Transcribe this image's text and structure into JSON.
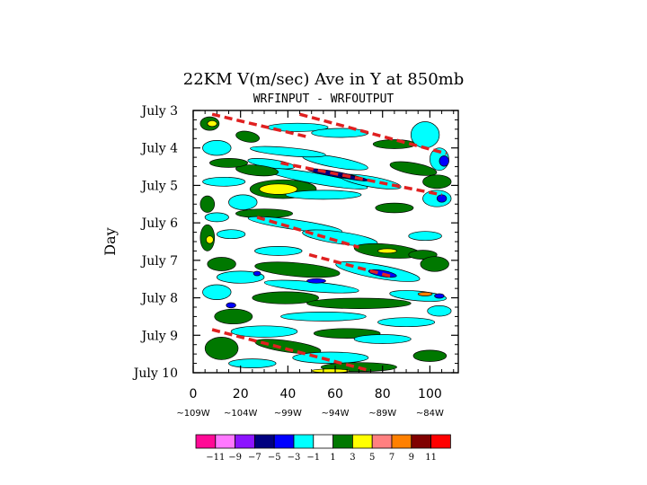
{
  "chart_data": {
    "type": "heatmap",
    "title": "22KM V(m/sec) Ave in Y at 850mb",
    "subtitle": "WRFINPUT - WRFOUTPUT",
    "ylabel": "Day",
    "xlabel": "",
    "xlim": [
      0,
      112
    ],
    "x_ticks": [
      0,
      20,
      40,
      60,
      80,
      100
    ],
    "x_tick_labels": [
      "0",
      "20",
      "40",
      "60",
      "80",
      "100"
    ],
    "x_secondary_labels": [
      "~109W",
      "~104W",
      "~99W",
      "~94W",
      "~89W",
      "~84W"
    ],
    "ylim": [
      3,
      10
    ],
    "y_ticks": [
      3,
      4,
      5,
      6,
      7,
      8,
      9,
      10
    ],
    "y_tick_labels": [
      "July 3",
      "July 4",
      "July 5",
      "July 6",
      "July 7",
      "July 8",
      "July 9",
      "July 10"
    ],
    "y_inverted": true,
    "colorbar": {
      "colors": [
        "#ff0a96",
        "#ff78ff",
        "#8c14ff",
        "#000080",
        "#0000ff",
        "#00ffff",
        "#ffffff",
        "#007800",
        "#ffff00",
        "#ff8080",
        "#ff8000",
        "#800000",
        "#ff0000"
      ],
      "labels": [
        "−11",
        "−9",
        "−7",
        "−5",
        "−3",
        "−1",
        "1",
        "3",
        "5",
        "7",
        "9",
        "11"
      ]
    },
    "features": [
      {
        "x": 23,
        "y": 3.7,
        "rx": 5,
        "ry": 0.14,
        "rot": 10,
        "value": 2
      },
      {
        "x": 33,
        "y": 4.42,
        "rx": 10,
        "ry": 0.11,
        "rot": 8,
        "value": -2
      },
      {
        "x": 52,
        "y": 4.82,
        "rx": 22,
        "ry": 0.14,
        "rot": 10,
        "value": -2
      },
      {
        "x": 60,
        "y": 4.38,
        "rx": 14,
        "ry": 0.14,
        "rot": 10,
        "value": -2
      },
      {
        "x": 75,
        "y": 4.9,
        "rx": 13,
        "ry": 0.14,
        "rot": 10,
        "value": -2
      },
      {
        "x": 27,
        "y": 4.6,
        "rx": 9,
        "ry": 0.14,
        "rot": 5,
        "value": 2
      },
      {
        "x": 40,
        "y": 4.1,
        "rx": 16,
        "ry": 0.11,
        "rot": 5,
        "value": -2
      },
      {
        "x": 44,
        "y": 3.45,
        "rx": 13,
        "ry": 0.11,
        "rot": 0,
        "value": -2
      },
      {
        "x": 62,
        "y": 3.6,
        "rx": 12,
        "ry": 0.12,
        "rot": 0,
        "value": -2
      },
      {
        "x": 85,
        "y": 3.9,
        "rx": 9,
        "ry": 0.12,
        "rot": 0,
        "value": 2
      },
      {
        "x": 98,
        "y": 3.65,
        "rx": 6,
        "ry": 0.35,
        "rot": 0,
        "value": -2
      },
      {
        "x": 7,
        "y": 3.35,
        "rx": 4,
        "ry": 0.18,
        "rot": 0,
        "value": 2
      },
      {
        "x": 93,
        "y": 4.55,
        "rx": 10,
        "ry": 0.15,
        "rot": 10,
        "value": 2
      },
      {
        "x": 104,
        "y": 4.3,
        "rx": 4,
        "ry": 0.3,
        "rot": 0,
        "value": -2
      },
      {
        "x": 103,
        "y": 4.9,
        "rx": 6,
        "ry": 0.18,
        "rot": 0,
        "value": 2
      },
      {
        "x": 10,
        "y": 4.0,
        "rx": 6,
        "ry": 0.2,
        "rot": 0,
        "value": -2
      },
      {
        "x": 15,
        "y": 4.4,
        "rx": 8,
        "ry": 0.12,
        "rot": 0,
        "value": 2
      },
      {
        "x": 13,
        "y": 4.9,
        "rx": 9,
        "ry": 0.12,
        "rot": 0,
        "value": -2
      },
      {
        "x": 38,
        "y": 5.1,
        "rx": 14,
        "ry": 0.25,
        "rot": 0,
        "value": 2
      },
      {
        "x": 21,
        "y": 5.45,
        "rx": 6,
        "ry": 0.2,
        "rot": 0,
        "value": -2
      },
      {
        "x": 55,
        "y": 5.25,
        "rx": 16,
        "ry": 0.12,
        "rot": 0,
        "value": -2
      },
      {
        "x": 85,
        "y": 5.6,
        "rx": 8,
        "ry": 0.13,
        "rot": 0,
        "value": 2
      },
      {
        "x": 103,
        "y": 5.35,
        "rx": 6,
        "ry": 0.22,
        "rot": 0,
        "value": -2
      },
      {
        "x": 6,
        "y": 5.5,
        "rx": 3,
        "ry": 0.22,
        "rot": 0,
        "value": 2
      },
      {
        "x": 30,
        "y": 5.75,
        "rx": 12,
        "ry": 0.12,
        "rot": 0,
        "value": 2
      },
      {
        "x": 10,
        "y": 5.85,
        "rx": 5,
        "ry": 0.12,
        "rot": 0,
        "value": -2
      },
      {
        "x": 43,
        "y": 6.05,
        "rx": 20,
        "ry": 0.13,
        "rot": 8,
        "value": -2
      },
      {
        "x": 62,
        "y": 6.4,
        "rx": 16,
        "ry": 0.16,
        "rot": 8,
        "value": -2
      },
      {
        "x": 6,
        "y": 6.4,
        "rx": 3,
        "ry": 0.35,
        "rot": 0,
        "value": 2
      },
      {
        "x": 16,
        "y": 6.3,
        "rx": 6,
        "ry": 0.12,
        "rot": 0,
        "value": -2
      },
      {
        "x": 82,
        "y": 6.75,
        "rx": 14,
        "ry": 0.18,
        "rot": 5,
        "value": 2
      },
      {
        "x": 98,
        "y": 6.35,
        "rx": 7,
        "ry": 0.12,
        "rot": 0,
        "value": -2
      },
      {
        "x": 97,
        "y": 6.85,
        "rx": 6,
        "ry": 0.12,
        "rot": 0,
        "value": 2
      },
      {
        "x": 36,
        "y": 6.75,
        "rx": 10,
        "ry": 0.12,
        "rot": 0,
        "value": -2
      },
      {
        "x": 78,
        "y": 7.3,
        "rx": 18,
        "ry": 0.18,
        "rot": 10,
        "value": -2
      },
      {
        "x": 102,
        "y": 7.1,
        "rx": 6,
        "ry": 0.2,
        "rot": 0,
        "value": 2
      },
      {
        "x": 12,
        "y": 7.1,
        "rx": 6,
        "ry": 0.18,
        "rot": 0,
        "value": 2
      },
      {
        "x": 44,
        "y": 7.25,
        "rx": 18,
        "ry": 0.18,
        "rot": 5,
        "value": 2
      },
      {
        "x": 20,
        "y": 7.45,
        "rx": 10,
        "ry": 0.16,
        "rot": 0,
        "value": -2
      },
      {
        "x": 50,
        "y": 7.7,
        "rx": 20,
        "ry": 0.13,
        "rot": 5,
        "value": -2
      },
      {
        "x": 95,
        "y": 7.95,
        "rx": 12,
        "ry": 0.13,
        "rot": 5,
        "value": -2
      },
      {
        "x": 10,
        "y": 7.85,
        "rx": 6,
        "ry": 0.2,
        "rot": 0,
        "value": -2
      },
      {
        "x": 39,
        "y": 8.0,
        "rx": 14,
        "ry": 0.16,
        "rot": 0,
        "value": 2
      },
      {
        "x": 70,
        "y": 8.15,
        "rx": 22,
        "ry": 0.14,
        "rot": 0,
        "value": 2
      },
      {
        "x": 104,
        "y": 8.35,
        "rx": 5,
        "ry": 0.14,
        "rot": 0,
        "value": -2
      },
      {
        "x": 17,
        "y": 8.5,
        "rx": 8,
        "ry": 0.2,
        "rot": 0,
        "value": 2
      },
      {
        "x": 55,
        "y": 8.5,
        "rx": 18,
        "ry": 0.12,
        "rot": 0,
        "value": -2
      },
      {
        "x": 90,
        "y": 8.65,
        "rx": 12,
        "ry": 0.12,
        "rot": 0,
        "value": -2
      },
      {
        "x": 30,
        "y": 8.9,
        "rx": 14,
        "ry": 0.15,
        "rot": 0,
        "value": -2
      },
      {
        "x": 65,
        "y": 8.95,
        "rx": 14,
        "ry": 0.13,
        "rot": 0,
        "value": 2
      },
      {
        "x": 80,
        "y": 9.1,
        "rx": 12,
        "ry": 0.12,
        "rot": 0,
        "value": -2
      },
      {
        "x": 12,
        "y": 9.35,
        "rx": 7,
        "ry": 0.3,
        "rot": 0,
        "value": 2
      },
      {
        "x": 40,
        "y": 9.3,
        "rx": 14,
        "ry": 0.15,
        "rot": 8,
        "value": 2
      },
      {
        "x": 58,
        "y": 9.6,
        "rx": 16,
        "ry": 0.15,
        "rot": 0,
        "value": -2
      },
      {
        "x": 25,
        "y": 9.75,
        "rx": 10,
        "ry": 0.12,
        "rot": 0,
        "value": -2
      },
      {
        "x": 70,
        "y": 9.85,
        "rx": 16,
        "ry": 0.12,
        "rot": 0,
        "value": 2
      },
      {
        "x": 100,
        "y": 9.55,
        "rx": 7,
        "ry": 0.15,
        "rot": 0,
        "value": 2
      }
    ],
    "strong_features": [
      {
        "x": 60,
        "y": 4.7,
        "rx": 12,
        "ry": 0.07,
        "rot": 10,
        "value": -6
      },
      {
        "x": 68,
        "y": 4.8,
        "rx": 6,
        "ry": 0.05,
        "rot": 10,
        "value": -6
      },
      {
        "x": 106,
        "y": 4.35,
        "rx": 2,
        "ry": 0.14,
        "rot": 0,
        "value": -4
      },
      {
        "x": 105,
        "y": 5.35,
        "rx": 2,
        "ry": 0.1,
        "rot": 0,
        "value": -4
      },
      {
        "x": 80,
        "y": 7.35,
        "rx": 6,
        "ry": 0.08,
        "rot": 10,
        "value": -4
      },
      {
        "x": 104,
        "y": 7.95,
        "rx": 2,
        "ry": 0.06,
        "rot": 0,
        "value": -4
      },
      {
        "x": 16,
        "y": 8.2,
        "rx": 2,
        "ry": 0.07,
        "rot": 0,
        "value": -4
      },
      {
        "x": 52,
        "y": 7.55,
        "rx": 4,
        "ry": 0.06,
        "rot": 0,
        "value": -4
      },
      {
        "x": 27,
        "y": 7.35,
        "rx": 1.5,
        "ry": 0.06,
        "rot": 0,
        "value": -4
      },
      {
        "x": 36,
        "y": 5.1,
        "rx": 8,
        "ry": 0.14,
        "rot": 0,
        "value": 4
      },
      {
        "x": 8,
        "y": 3.35,
        "rx": 2,
        "ry": 0.08,
        "rot": 0,
        "value": 4
      },
      {
        "x": 7,
        "y": 6.45,
        "rx": 1.5,
        "ry": 0.1,
        "rot": 0,
        "value": 4
      },
      {
        "x": 82,
        "y": 6.75,
        "rx": 4,
        "ry": 0.06,
        "rot": 0,
        "value": 4
      },
      {
        "x": 98,
        "y": 7.9,
        "rx": 3,
        "ry": 0.05,
        "rot": 0,
        "value": 7
      },
      {
        "x": 58,
        "y": 9.95,
        "rx": 8,
        "ry": 0.05,
        "rot": 0,
        "value": 4
      }
    ],
    "dashed_lines": [
      {
        "x": [
          8,
          48
        ],
        "y": [
          3.1,
          3.7
        ]
      },
      {
        "x": [
          45,
          107
        ],
        "y": [
          3.1,
          4.15
        ]
      },
      {
        "x": [
          37,
          105
        ],
        "y": [
          4.4,
          5.25
        ]
      },
      {
        "x": [
          27,
          70
        ],
        "y": [
          5.85,
          6.65
        ]
      },
      {
        "x": [
          49,
          85
        ],
        "y": [
          6.85,
          7.45
        ]
      },
      {
        "x": [
          8,
          75
        ],
        "y": [
          8.85,
          9.95
        ]
      }
    ]
  }
}
